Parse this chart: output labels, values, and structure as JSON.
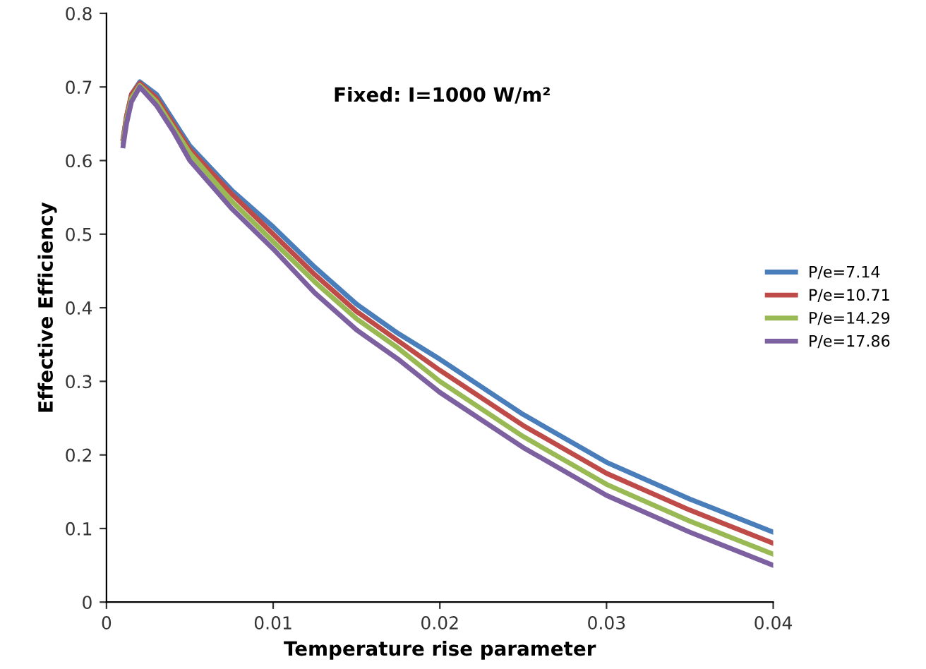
{
  "chart_data": {
    "type": "line",
    "xlabel": "Temperature rise parameter",
    "ylabel": "Effective Efficiency",
    "annotations": [
      "Fixed: I=1000 W/m²"
    ],
    "x": [
      0.001,
      0.0012,
      0.0015,
      0.002,
      0.003,
      0.004,
      0.005,
      0.0075,
      0.01,
      0.0125,
      0.015,
      0.0175,
      0.02,
      0.025,
      0.03,
      0.035,
      0.04
    ],
    "series": [
      {
        "name": "P/e=7.14",
        "color": "#4a7ebb",
        "values": [
          0.63,
          0.66,
          0.69,
          0.707,
          0.69,
          0.655,
          0.62,
          0.56,
          0.51,
          0.455,
          0.405,
          0.365,
          0.33,
          0.255,
          0.19,
          0.14,
          0.095
        ]
      },
      {
        "name": "P/e=10.71",
        "color": "#be4b48",
        "values": [
          0.63,
          0.66,
          0.69,
          0.705,
          0.685,
          0.65,
          0.615,
          0.555,
          0.5,
          0.445,
          0.395,
          0.355,
          0.315,
          0.24,
          0.175,
          0.125,
          0.08
        ]
      },
      {
        "name": "P/e=14.29",
        "color": "#98b954",
        "values": [
          0.625,
          0.655,
          0.685,
          0.702,
          0.68,
          0.645,
          0.61,
          0.545,
          0.49,
          0.435,
          0.385,
          0.345,
          0.3,
          0.225,
          0.16,
          0.11,
          0.065
        ]
      },
      {
        "name": "P/e=17.86",
        "color": "#7d60a0",
        "values": [
          0.62,
          0.65,
          0.68,
          0.7,
          0.675,
          0.64,
          0.6,
          0.535,
          0.48,
          0.42,
          0.37,
          0.33,
          0.285,
          0.21,
          0.145,
          0.095,
          0.05
        ]
      }
    ],
    "xlim": [
      0,
      0.04
    ],
    "xticks": [
      0,
      0.01,
      0.02,
      0.03,
      0.04
    ],
    "ylim": [
      0,
      0.8
    ],
    "yticks": [
      0,
      0.1,
      0.2,
      0.3,
      0.4,
      0.5,
      0.6,
      0.7,
      0.8
    ],
    "legend": "right",
    "grid": false,
    "marker": "none",
    "line_style": "solid"
  }
}
